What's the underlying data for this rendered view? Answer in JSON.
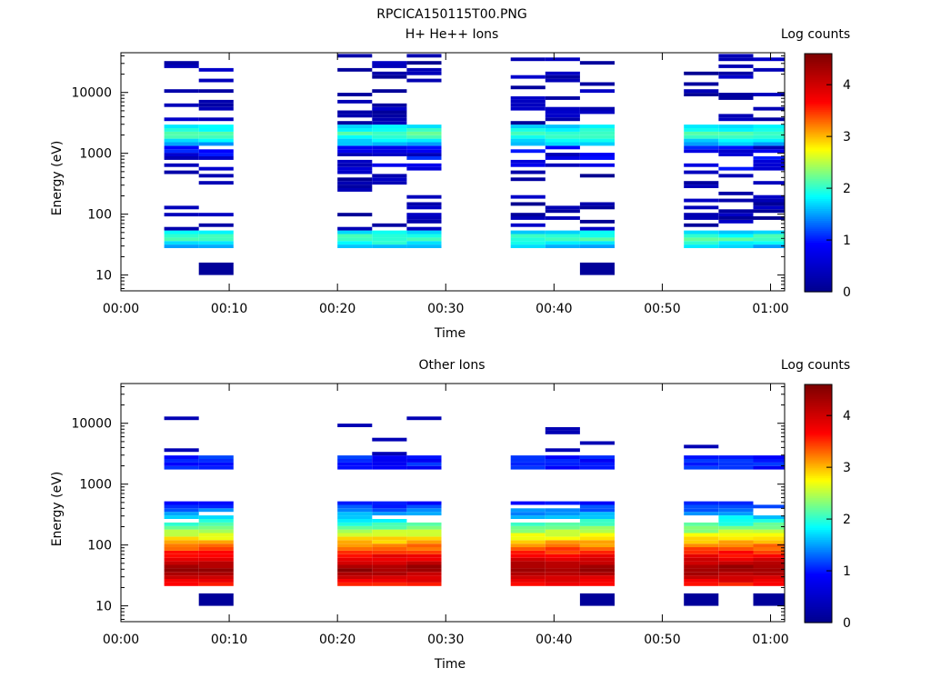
{
  "figure": {
    "title": "RPCICA150115T00.PNG",
    "colorbar_ticks": [
      "0",
      "1",
      "2",
      "3",
      "4"
    ]
  },
  "chart_data": [
    {
      "type": "heatmap",
      "title": "H+ He++ Ions",
      "xlabel": "Time",
      "ylabel": "Energy (eV)",
      "colorbar_label": "Log counts",
      "colorbar_range": [
        0,
        4.6
      ],
      "y_scale": "log",
      "ylim": [
        5.5,
        45000
      ],
      "xlim_minutes": [
        0,
        61.3
      ],
      "x_ticks": [
        "00:00",
        "00:10",
        "00:20",
        "00:30",
        "00:40",
        "00:50",
        "01:00"
      ],
      "y_ticks": [
        "10",
        "100",
        "1000",
        "10000"
      ],
      "colormap": [
        "#00008f",
        "#0000ff",
        "#00ffff",
        "#ffff00",
        "#ff0000",
        "#800000"
      ],
      "time_bins_minutes": [
        [
          4.0,
          7.2
        ],
        [
          7.2,
          10.4
        ],
        [
          20.0,
          23.2
        ],
        [
          23.2,
          26.4
        ],
        [
          26.4,
          29.6
        ],
        [
          36.0,
          39.2
        ],
        [
          39.2,
          42.4
        ],
        [
          42.4,
          45.6
        ],
        [
          52.0,
          55.2
        ],
        [
          55.2,
          58.4
        ],
        [
          58.4,
          61.3
        ]
      ]
    },
    {
      "type": "heatmap",
      "title": "Other Ions",
      "xlabel": "Time",
      "ylabel": "Energy (eV)",
      "colorbar_label": "Log counts",
      "colorbar_range": [
        0,
        4.6
      ],
      "y_scale": "log",
      "ylim": [
        5.5,
        45000
      ],
      "xlim_minutes": [
        0,
        61.3
      ],
      "x_ticks": [
        "00:00",
        "00:10",
        "00:20",
        "00:30",
        "00:40",
        "00:50",
        "01:00"
      ],
      "y_ticks": [
        "10",
        "100",
        "1000",
        "10000"
      ],
      "colormap": [
        "#00008f",
        "#0000ff",
        "#00ffff",
        "#ffff00",
        "#ff0000",
        "#800000"
      ],
      "time_bins_minutes": [
        [
          4.0,
          7.2
        ],
        [
          7.2,
          10.4
        ],
        [
          20.0,
          23.2
        ],
        [
          23.2,
          26.4
        ],
        [
          26.4,
          29.6
        ],
        [
          36.0,
          39.2
        ],
        [
          39.2,
          42.4
        ],
        [
          42.4,
          45.6
        ],
        [
          52.0,
          55.2
        ],
        [
          55.2,
          58.4
        ],
        [
          58.4,
          61.3
        ]
      ]
    }
  ]
}
